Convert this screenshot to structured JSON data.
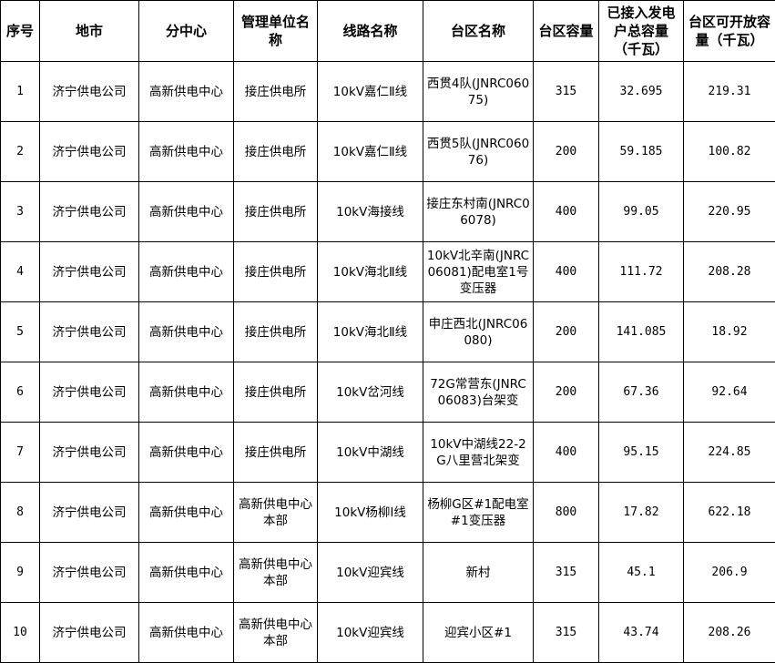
{
  "table": {
    "headers": [
      "序号",
      "地市",
      "分中心",
      "管理单位名称",
      "线路名称",
      "台区名称",
      "台区容量",
      "已接入发电户总容量（千瓦）",
      "台区可开放容量（千瓦）"
    ],
    "rows": [
      [
        "1",
        "济宁供电公司",
        "高新供电中心",
        "接庄供电所",
        "10kV嘉仁Ⅱ线",
        "西贯4队(JNRC06075)",
        "315",
        "32.695",
        "219.31"
      ],
      [
        "2",
        "济宁供电公司",
        "高新供电中心",
        "接庄供电所",
        "10kV嘉仁Ⅱ线",
        "西贯5队(JNRC06076)",
        "200",
        "59.185",
        "100.82"
      ],
      [
        "3",
        "济宁供电公司",
        "高新供电中心",
        "接庄供电所",
        "10kV海接线",
        "接庄东村南(JNRC06078)",
        "400",
        "99.05",
        "220.95"
      ],
      [
        "4",
        "济宁供电公司",
        "高新供电中心",
        "接庄供电所",
        "10kV海北Ⅱ线",
        "10kV北辛南(JNRC06081)配电室1号变压器",
        "400",
        "111.72",
        "208.28"
      ],
      [
        "5",
        "济宁供电公司",
        "高新供电中心",
        "接庄供电所",
        "10kV海北Ⅱ线",
        "申庄西北(JNRC06080)",
        "200",
        "141.085",
        "18.92"
      ],
      [
        "6",
        "济宁供电公司",
        "高新供电中心",
        "接庄供电所",
        "10kV岔河线",
        "72G常营东(JNRC06083)台架变",
        "200",
        "67.36",
        "92.64"
      ],
      [
        "7",
        "济宁供电公司",
        "高新供电中心",
        "接庄供电所",
        "10kV中湖线",
        "10kV中湖线22-2G八里营北架变",
        "400",
        "95.15",
        "224.85"
      ],
      [
        "8",
        "济宁供电公司",
        "高新供电中心",
        "高新供电中心本部",
        "10kV杨柳Ⅰ线",
        "杨柳G区#1配电室#1变压器",
        "800",
        "17.82",
        "622.18"
      ],
      [
        "9",
        "济宁供电公司",
        "高新供电中心",
        "高新供电中心本部",
        "10kV迎宾线",
        "新村",
        "315",
        "45.1",
        "206.9"
      ],
      [
        "10",
        "济宁供电公司",
        "高新供电中心",
        "高新供电中心本部",
        "10kV迎宾线",
        "迎宾小区#1",
        "315",
        "43.74",
        "208.26"
      ]
    ]
  }
}
